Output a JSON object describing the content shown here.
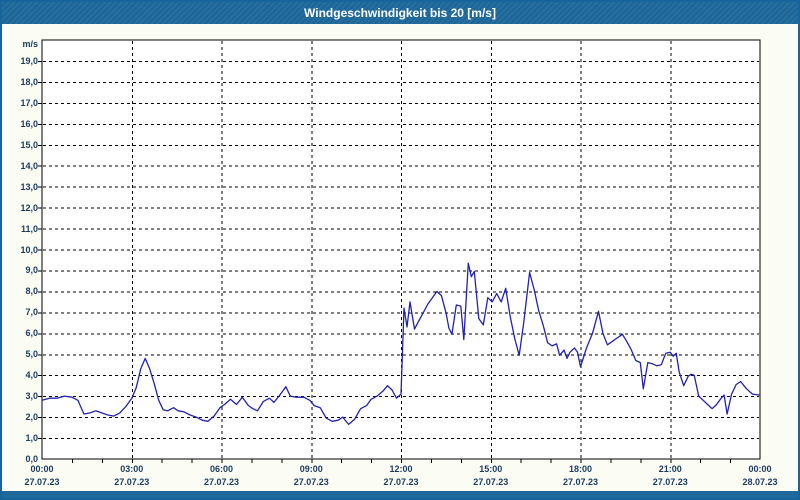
{
  "window": {
    "title": "Windgeschwindigkeit bis 20 [m/s]"
  },
  "colors": {
    "titlebar_bg": "#1D699C",
    "window_bg": "#FBFCF3",
    "plot_bg": "#FFFFFF",
    "grid": "#000000",
    "axis": "#000000",
    "tick_text": "#1A3A5E",
    "line": "#2222AE"
  },
  "chart_data": {
    "type": "line",
    "title": "Windgeschwindigkeit bis 20 [m/s]",
    "y_unit": "m/s",
    "xlabel": "",
    "ylabel": "m/s",
    "ylim": [
      0,
      20
    ],
    "xlim_hours": [
      0,
      24
    ],
    "grid": "dashed, horizontal every 1 m/s, vertical every 3 h",
    "legend_position": "none",
    "y_tick_labels": [
      "19,0",
      "18,0",
      "17,0",
      "16,0",
      "15,0",
      "14,0",
      "13,0",
      "12,0",
      "11,0",
      "10,0",
      "9,0",
      "8,0",
      "7,0",
      "6,0",
      "5,0",
      "4,0",
      "3,0",
      "2,0",
      "1,0",
      "0,0"
    ],
    "x_ticks": [
      {
        "h": 0,
        "time": "00:00",
        "date": "27.07.23"
      },
      {
        "h": 3,
        "time": "03:00",
        "date": "27.07.23"
      },
      {
        "h": 6,
        "time": "06:00",
        "date": "27.07.23"
      },
      {
        "h": 9,
        "time": "09:00",
        "date": "27.07.23"
      },
      {
        "h": 12,
        "time": "12:00",
        "date": "27.07.23"
      },
      {
        "h": 15,
        "time": "15:00",
        "date": "27.07.23"
      },
      {
        "h": 18,
        "time": "18:00",
        "date": "27.07.23"
      },
      {
        "h": 21,
        "time": "21:00",
        "date": "27.07.23"
      },
      {
        "h": 24,
        "time": "00:00",
        "date": "28.07.23"
      }
    ],
    "series": [
      {
        "name": "Windgeschwindigkeit [m/s]",
        "color": "#2222AE",
        "points": [
          [
            0,
            2.8
          ],
          [
            0.25,
            2.9
          ],
          [
            0.5,
            2.9
          ],
          [
            0.75,
            3.0
          ],
          [
            1.0,
            2.95
          ],
          [
            1.2,
            2.8
          ],
          [
            1.4,
            2.15
          ],
          [
            1.6,
            2.2
          ],
          [
            1.8,
            2.3
          ],
          [
            2.0,
            2.2
          ],
          [
            2.2,
            2.1
          ],
          [
            2.4,
            2.05
          ],
          [
            2.6,
            2.2
          ],
          [
            2.8,
            2.5
          ],
          [
            3.0,
            2.9
          ],
          [
            3.15,
            3.4
          ],
          [
            3.3,
            4.3
          ],
          [
            3.45,
            4.8
          ],
          [
            3.6,
            4.3
          ],
          [
            3.75,
            3.6
          ],
          [
            3.9,
            2.8
          ],
          [
            4.05,
            2.35
          ],
          [
            4.2,
            2.3
          ],
          [
            4.4,
            2.45
          ],
          [
            4.55,
            2.3
          ],
          [
            4.75,
            2.25
          ],
          [
            4.95,
            2.1
          ],
          [
            5.15,
            2.0
          ],
          [
            5.35,
            1.85
          ],
          [
            5.55,
            1.8
          ],
          [
            5.75,
            2.05
          ],
          [
            5.95,
            2.45
          ],
          [
            6.1,
            2.6
          ],
          [
            6.3,
            2.85
          ],
          [
            6.5,
            2.6
          ],
          [
            6.7,
            2.95
          ],
          [
            6.9,
            2.55
          ],
          [
            7.05,
            2.4
          ],
          [
            7.2,
            2.3
          ],
          [
            7.4,
            2.75
          ],
          [
            7.6,
            2.9
          ],
          [
            7.75,
            2.7
          ],
          [
            7.95,
            3.05
          ],
          [
            8.15,
            3.45
          ],
          [
            8.3,
            3.0
          ],
          [
            8.5,
            2.95
          ],
          [
            8.75,
            2.95
          ],
          [
            8.95,
            2.8
          ],
          [
            9.1,
            2.55
          ],
          [
            9.3,
            2.45
          ],
          [
            9.5,
            1.95
          ],
          [
            9.7,
            1.8
          ],
          [
            9.9,
            1.85
          ],
          [
            10.05,
            2.0
          ],
          [
            10.25,
            1.65
          ],
          [
            10.45,
            1.9
          ],
          [
            10.65,
            2.4
          ],
          [
            10.85,
            2.55
          ],
          [
            11.0,
            2.85
          ],
          [
            11.2,
            3.0
          ],
          [
            11.4,
            3.25
          ],
          [
            11.55,
            3.5
          ],
          [
            11.7,
            3.3
          ],
          [
            11.85,
            2.9
          ],
          [
            12.0,
            3.1
          ],
          [
            12.1,
            7.2
          ],
          [
            12.2,
            6.3
          ],
          [
            12.3,
            7.5
          ],
          [
            12.45,
            6.2
          ],
          [
            12.6,
            6.6
          ],
          [
            12.75,
            7.0
          ],
          [
            12.9,
            7.4
          ],
          [
            13.05,
            7.7
          ],
          [
            13.2,
            8.0
          ],
          [
            13.35,
            7.8
          ],
          [
            13.5,
            7.0
          ],
          [
            13.6,
            6.25
          ],
          [
            13.7,
            5.95
          ],
          [
            13.85,
            7.35
          ],
          [
            14.0,
            7.3
          ],
          [
            14.1,
            5.7
          ],
          [
            14.25,
            9.35
          ],
          [
            14.35,
            8.7
          ],
          [
            14.45,
            8.95
          ],
          [
            14.6,
            6.7
          ],
          [
            14.75,
            6.4
          ],
          [
            14.9,
            7.7
          ],
          [
            15.05,
            7.5
          ],
          [
            15.2,
            7.9
          ],
          [
            15.35,
            7.5
          ],
          [
            15.5,
            8.15
          ],
          [
            15.65,
            6.8
          ],
          [
            15.8,
            5.75
          ],
          [
            15.95,
            4.95
          ],
          [
            16.1,
            6.5
          ],
          [
            16.3,
            8.9
          ],
          [
            16.45,
            8.1
          ],
          [
            16.6,
            7.1
          ],
          [
            16.75,
            6.4
          ],
          [
            16.9,
            5.55
          ],
          [
            17.05,
            5.4
          ],
          [
            17.2,
            5.5
          ],
          [
            17.3,
            4.95
          ],
          [
            17.45,
            5.2
          ],
          [
            17.55,
            4.8
          ],
          [
            17.65,
            5.1
          ],
          [
            17.8,
            5.3
          ],
          [
            17.9,
            5.1
          ],
          [
            18.0,
            4.4
          ],
          [
            18.2,
            5.3
          ],
          [
            18.4,
            6.0
          ],
          [
            18.6,
            7.05
          ],
          [
            18.75,
            6.0
          ],
          [
            18.9,
            5.45
          ],
          [
            19.05,
            5.6
          ],
          [
            19.2,
            5.75
          ],
          [
            19.4,
            5.95
          ],
          [
            19.55,
            5.6
          ],
          [
            19.7,
            5.2
          ],
          [
            19.85,
            4.7
          ],
          [
            20.0,
            4.6
          ],
          [
            20.1,
            3.35
          ],
          [
            20.25,
            4.6
          ],
          [
            20.4,
            4.55
          ],
          [
            20.55,
            4.45
          ],
          [
            20.7,
            4.5
          ],
          [
            20.85,
            5.05
          ],
          [
            21.0,
            5.1
          ],
          [
            21.1,
            4.9
          ],
          [
            21.2,
            5.05
          ],
          [
            21.3,
            4.15
          ],
          [
            21.45,
            3.5
          ],
          [
            21.6,
            3.95
          ],
          [
            21.7,
            4.05
          ],
          [
            21.8,
            4.0
          ],
          [
            21.95,
            3.0
          ],
          [
            22.1,
            2.8
          ],
          [
            22.25,
            2.6
          ],
          [
            22.4,
            2.4
          ],
          [
            22.55,
            2.6
          ],
          [
            22.7,
            2.9
          ],
          [
            22.8,
            3.05
          ],
          [
            22.9,
            2.15
          ],
          [
            23.05,
            3.1
          ],
          [
            23.2,
            3.55
          ],
          [
            23.35,
            3.7
          ],
          [
            23.55,
            3.35
          ],
          [
            23.75,
            3.1
          ],
          [
            24.0,
            3.05
          ]
        ]
      }
    ]
  }
}
